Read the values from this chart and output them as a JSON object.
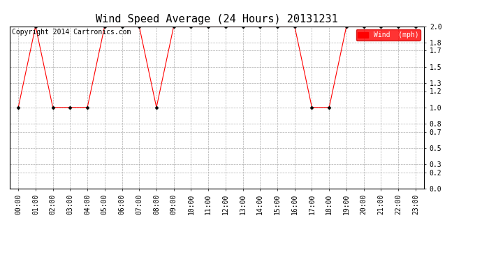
{
  "title": "Wind Speed Average (24 Hours) 20131231",
  "copyright": "Copyright 2014 Cartronics.com",
  "legend_label": "Wind  (mph)",
  "legend_bg": "#ff0000",
  "legend_fg": "#ffffff",
  "x_labels": [
    "00:00",
    "01:00",
    "02:00",
    "03:00",
    "04:00",
    "05:00",
    "06:00",
    "07:00",
    "08:00",
    "09:00",
    "10:00",
    "11:00",
    "12:00",
    "13:00",
    "14:00",
    "15:00",
    "16:00",
    "17:00",
    "18:00",
    "19:00",
    "20:00",
    "21:00",
    "22:00",
    "23:00"
  ],
  "hours": [
    0,
    1,
    2,
    3,
    4,
    5,
    6,
    7,
    8,
    9,
    10,
    11,
    12,
    13,
    14,
    15,
    16,
    17,
    18,
    19,
    20,
    21,
    22,
    23
  ],
  "values": [
    1.0,
    2.0,
    1.0,
    1.0,
    1.0,
    2.0,
    2.0,
    2.0,
    1.0,
    2.0,
    2.0,
    2.0,
    2.0,
    2.0,
    2.0,
    2.0,
    2.0,
    1.0,
    1.0,
    2.0,
    2.0,
    2.0,
    2.0,
    2.0
  ],
  "line_color": "#ff0000",
  "marker_color": "#000000",
  "bg_color": "#ffffff",
  "grid_color": "#999999",
  "ylim_min": 0.0,
  "ylim_max": 2.0,
  "yticks": [
    0.0,
    0.2,
    0.3,
    0.5,
    0.7,
    0.8,
    1.0,
    1.2,
    1.3,
    1.5,
    1.7,
    1.8,
    2.0
  ],
  "ytick_labels": [
    "0.0",
    "0.2",
    "0.3",
    "0.5",
    "0.7",
    "0.8",
    "1.0",
    "1.2",
    "1.3",
    "1.5",
    "1.7",
    "1.8",
    "2.0"
  ],
  "title_fontsize": 11,
  "tick_fontsize": 7,
  "copyright_fontsize": 7,
  "legend_fontsize": 7
}
